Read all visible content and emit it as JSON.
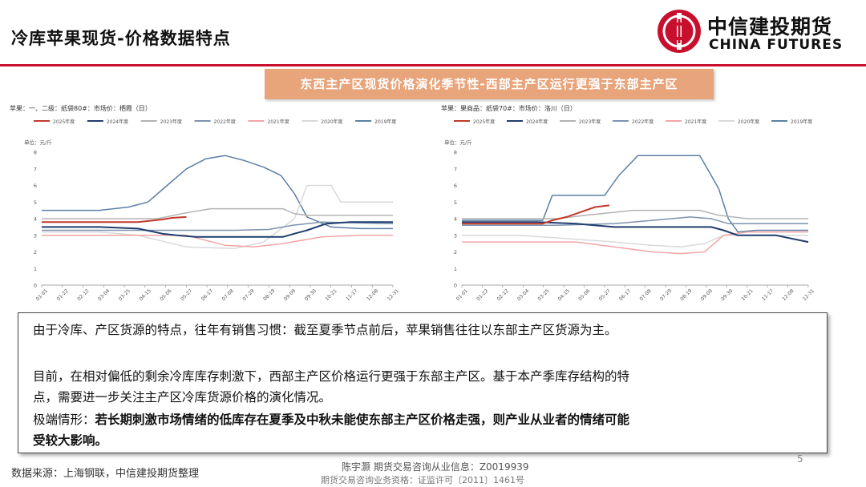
{
  "page": {
    "title": "冷库苹果现货-价格数据特点",
    "logo_cn": "中信建投期货",
    "logo_en": "CHINA FUTURES",
    "banner": "东西主产区现货价格演化季节性-西部主产区运行更强于东部主产区",
    "brand_color": "#c8102e",
    "banner_color": "#e8a47a"
  },
  "text": {
    "p1": "由于冷库、产区货源的特点，往年有销售习惯：截至夏季节点前后，苹果销售往往以东部主产区货源为主。",
    "p2a": "目前，在相对偏低的剩余冷库库存刺激下，西部主产区价格运行更强于东部主产区。基于本产季库存结构的特",
    "p2b": "点，需要进一步关注主产区冷库货源价格的演化情况。",
    "p3_label": "极端情形：",
    "p3a": "若长期刺激市场情绪的低库存在夏季及中秋未能使东部主产区价格走强，则产业从业者的情绪可能",
    "p3b": "受较大影响。"
  },
  "footer": {
    "source": "数据来源：上海钢联，中信建投期货整理",
    "credit_line1": "陈宇灏 期货交易咨询从业信息：Z0019939",
    "credit_line2": "期货交易咨询业务资格：证监许可〔2011〕1461号",
    "page_number": "5"
  },
  "chart_data": [
    {
      "type": "line",
      "title": "苹果：一、二级：纸袋80#：市场价：栖霞（日）",
      "ylabel": "单位：元/斤",
      "ylim": [
        0,
        8
      ],
      "yticks": [
        "0",
        "1",
        "2",
        "3",
        "4",
        "5",
        "6",
        "7",
        "8"
      ],
      "x_ticks": [
        "01-01",
        "01-22",
        "02-12",
        "03-04",
        "03-25",
        "04-15",
        "05-06",
        "05-27",
        "06-17",
        "07-08",
        "07-29",
        "08-19",
        "09-09",
        "09-30",
        "10-21",
        "11-17",
        "12-08",
        "12-31"
      ],
      "x_domain": [
        0,
        364
      ],
      "series": [
        {
          "name": "2025年度",
          "color": "#c0392b",
          "width": 2,
          "points": [
            [
              0,
              3.8
            ],
            [
              100,
              3.8
            ],
            [
              125,
              3.95
            ],
            [
              135,
              4.05
            ],
            [
              150,
              4.1
            ]
          ]
        },
        {
          "name": "2024年度",
          "color": "#1f3d6e",
          "width": 2,
          "points": [
            [
              0,
              3.5
            ],
            [
              60,
              3.5
            ],
            [
              100,
              3.4
            ],
            [
              125,
              3.1
            ],
            [
              140,
              3.0
            ],
            [
              160,
              2.9
            ],
            [
              200,
              2.9
            ],
            [
              250,
              2.9
            ],
            [
              262,
              3.1
            ],
            [
              275,
              3.3
            ],
            [
              295,
              3.7
            ],
            [
              320,
              3.8
            ],
            [
              364,
              3.8
            ]
          ]
        },
        {
          "name": "2023年度",
          "color": "#b3b3b3",
          "width": 1.5,
          "points": [
            [
              0,
              4.0
            ],
            [
              120,
              4.0
            ],
            [
              145,
              4.3
            ],
            [
              175,
              4.6
            ],
            [
              250,
              4.6
            ],
            [
              262,
              4.3
            ],
            [
              275,
              4.2
            ],
            [
              364,
              4.2
            ]
          ]
        },
        {
          "name": "2022年度",
          "color": "#7d93ad",
          "width": 1.5,
          "points": [
            [
              0,
              3.3
            ],
            [
              150,
              3.3
            ],
            [
              200,
              3.3
            ],
            [
              235,
              3.35
            ],
            [
              260,
              3.6
            ],
            [
              290,
              3.8
            ],
            [
              364,
              3.7
            ]
          ]
        },
        {
          "name": "2021年度",
          "color": "#f2a5a5",
          "width": 1.5,
          "points": [
            [
              0,
              3.0
            ],
            [
              60,
              3.0
            ],
            [
              120,
              3.0
            ],
            [
              150,
              3.0
            ],
            [
              190,
              2.4
            ],
            [
              220,
              2.3
            ],
            [
              250,
              2.5
            ],
            [
              290,
              2.9
            ],
            [
              330,
              3.0
            ],
            [
              364,
              3.0
            ]
          ]
        },
        {
          "name": "2020年度",
          "color": "#d9d9d9",
          "width": 1.5,
          "points": [
            [
              0,
              3.2
            ],
            [
              60,
              3.2
            ],
            [
              100,
              3.0
            ],
            [
              150,
              2.3
            ],
            [
              200,
              2.2
            ],
            [
              230,
              2.6
            ],
            [
              262,
              4.0
            ],
            [
              275,
              6.0
            ],
            [
              300,
              6.0
            ],
            [
              310,
              5.0
            ],
            [
              364,
              5.0
            ]
          ]
        },
        {
          "name": "2019年度",
          "color": "#5b7fa5",
          "width": 1.5,
          "points": [
            [
              0,
              4.5
            ],
            [
              60,
              4.5
            ],
            [
              90,
              4.7
            ],
            [
              110,
              5.0
            ],
            [
              130,
              6.0
            ],
            [
              150,
              7.0
            ],
            [
              170,
              7.6
            ],
            [
              190,
              7.8
            ],
            [
              210,
              7.5
            ],
            [
              230,
              7.1
            ],
            [
              248,
              6.6
            ],
            [
              262,
              5.5
            ],
            [
              275,
              4.1
            ],
            [
              300,
              3.5
            ],
            [
              330,
              3.4
            ],
            [
              364,
              3.4
            ]
          ]
        }
      ]
    },
    {
      "type": "line",
      "title": "苹果：果商品：纸袋70#：市场价：洛川（日）",
      "ylabel": "单位：元/斤",
      "ylim": [
        0,
        8
      ],
      "yticks": [
        "0",
        "1",
        "2",
        "3",
        "4",
        "5",
        "6",
        "7",
        "8"
      ],
      "x_ticks": [
        "01-01",
        "01-22",
        "02-12",
        "03-04",
        "03-25",
        "04-15",
        "05-06",
        "05-27",
        "06-17",
        "07-08",
        "07-29",
        "08-19",
        "09-09",
        "09-30",
        "10-21",
        "11-17",
        "12-08",
        "12-31"
      ],
      "x_domain": [
        0,
        364
      ],
      "series": [
        {
          "name": "2025年度",
          "color": "#c0392b",
          "width": 2,
          "points": [
            [
              0,
              3.7
            ],
            [
              85,
              3.7
            ],
            [
              95,
              3.9
            ],
            [
              110,
              4.1
            ],
            [
              125,
              4.4
            ],
            [
              140,
              4.7
            ],
            [
              155,
              4.8
            ]
          ]
        },
        {
          "name": "2024年度",
          "color": "#1f3d6e",
          "width": 2,
          "points": [
            [
              0,
              3.8
            ],
            [
              80,
              3.8
            ],
            [
              120,
              3.7
            ],
            [
              160,
              3.5
            ],
            [
              220,
              3.5
            ],
            [
              262,
              3.5
            ],
            [
              275,
              3.3
            ],
            [
              290,
              3.0
            ],
            [
              330,
              3.0
            ],
            [
              364,
              2.6
            ]
          ]
        },
        {
          "name": "2023年度",
          "color": "#b3b3b3",
          "width": 1.5,
          "points": [
            [
              0,
              4.0
            ],
            [
              100,
              4.0
            ],
            [
              130,
              4.2
            ],
            [
              180,
              4.5
            ],
            [
              250,
              4.5
            ],
            [
              270,
              4.2
            ],
            [
              300,
              4.0
            ],
            [
              364,
              4.0
            ]
          ]
        },
        {
          "name": "2022年度",
          "color": "#7d93ad",
          "width": 1.5,
          "points": [
            [
              0,
              3.6
            ],
            [
              100,
              3.6
            ],
            [
              160,
              3.7
            ],
            [
              200,
              3.9
            ],
            [
              240,
              4.1
            ],
            [
              262,
              4.0
            ],
            [
              280,
              3.7
            ],
            [
              364,
              3.7
            ]
          ]
        },
        {
          "name": "2021年度",
          "color": "#f2a5a5",
          "width": 1.5,
          "points": [
            [
              0,
              2.6
            ],
            [
              80,
              2.6
            ],
            [
              120,
              2.6
            ],
            [
              160,
              2.3
            ],
            [
              200,
              2.0
            ],
            [
              230,
              1.9
            ],
            [
              255,
              2.0
            ],
            [
              275,
              3.0
            ],
            [
              300,
              3.2
            ],
            [
              364,
              3.2
            ]
          ]
        },
        {
          "name": "2020年度",
          "color": "#d9d9d9",
          "width": 1.5,
          "points": [
            [
              0,
              3.0
            ],
            [
              60,
              3.0
            ],
            [
              110,
              2.8
            ],
            [
              160,
              2.6
            ],
            [
              200,
              2.4
            ],
            [
              230,
              2.3
            ],
            [
              255,
              2.5
            ],
            [
              275,
              3.0
            ],
            [
              364,
              3.0
            ]
          ]
        },
        {
          "name": "2019年度",
          "color": "#5b7fa5",
          "width": 1.5,
          "points": [
            [
              0,
              3.9
            ],
            [
              85,
              3.9
            ],
            [
              95,
              5.4
            ],
            [
              150,
              5.4
            ],
            [
              165,
              6.6
            ],
            [
              175,
              7.2
            ],
            [
              185,
              7.8
            ],
            [
              250,
              7.8
            ],
            [
              260,
              6.8
            ],
            [
              270,
              5.8
            ],
            [
              280,
              4.0
            ],
            [
              290,
              3.2
            ],
            [
              310,
              3.3
            ],
            [
              364,
              3.3
            ]
          ]
        }
      ]
    }
  ]
}
